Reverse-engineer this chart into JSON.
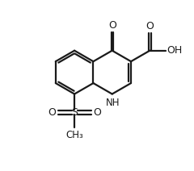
{
  "bg_color": "#ffffff",
  "line_color": "#1a1a1a",
  "line_width": 1.6,
  "figsize": [
    2.4,
    2.12
  ],
  "dpi": 100,
  "xlim": [
    0,
    10
  ],
  "ylim": [
    0,
    9
  ]
}
